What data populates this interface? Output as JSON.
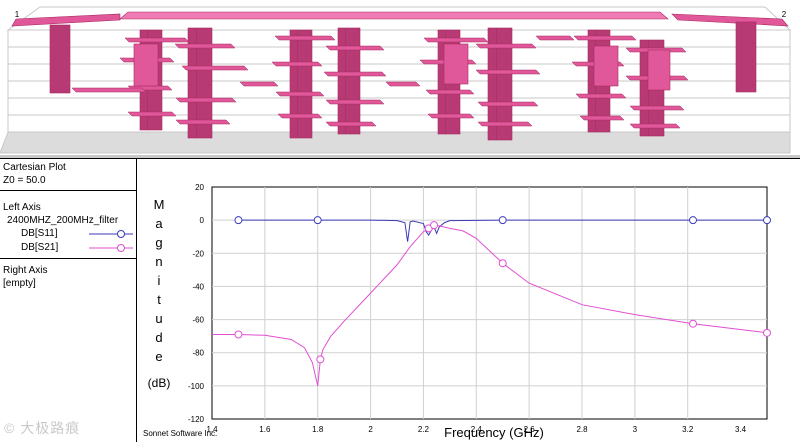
{
  "view3d": {
    "port_labels": [
      "1",
      "2"
    ],
    "colors": {
      "metal": "#e0579a",
      "metal_dark": "#a8285f",
      "metal_top": "#f07ab4",
      "via": "#b83a75",
      "grid": "#c8c8c8"
    }
  },
  "panel": {
    "plot_type": "Cartesian Plot",
    "z0": "Z0 = 50.0",
    "left_axis_title": "Left Axis",
    "project_name": "2400MHZ_200MHz_filter",
    "traces": [
      {
        "label": "DB[S11]",
        "color": "#3a3ab8"
      },
      {
        "label": "DB[S21]",
        "color": "#e04fd2"
      }
    ],
    "right_axis_title": "Right Axis",
    "right_axis_value": "[empty]"
  },
  "watermark": "© 大极路痕",
  "chart_data": {
    "type": "line",
    "xlabel": "Frequency (GHz)",
    "ylabel_letters": [
      "M",
      "a",
      "g",
      "n",
      "i",
      "t",
      "u",
      "d",
      "e"
    ],
    "ylabel_unit": "(dB)",
    "credit": "Sonnet Software Inc.",
    "xlim": [
      1.4,
      3.5
    ],
    "ylim": [
      -120,
      20
    ],
    "x_ticks": [
      "1.4",
      "1.6",
      "1.8",
      "2",
      "2.2",
      "2.4",
      "2.6",
      "2.8",
      "3",
      "3.2",
      "3.4"
    ],
    "y_ticks": [
      "20",
      "0",
      "-20",
      "-40",
      "-60",
      "-80",
      "-100",
      "-120"
    ],
    "grid": true,
    "series": [
      {
        "name": "DB[S11]",
        "color": "#3a3ab8",
        "x": [
          1.5,
          1.8,
          2.0,
          2.1,
          2.13,
          2.14,
          2.15,
          2.16,
          2.2,
          2.21,
          2.22,
          2.23,
          2.24,
          2.25,
          2.26,
          2.28,
          2.3,
          2.5,
          3.0,
          3.22,
          3.5
        ],
        "y": [
          0,
          0,
          0,
          -0.3,
          -1.5,
          -13,
          -1,
          -0.5,
          -2,
          -7,
          -9,
          -6,
          -4,
          -8,
          -4,
          -1.5,
          -0.3,
          0,
          0,
          0,
          0
        ],
        "markers_x": [
          1.5,
          1.8,
          2.5,
          3.22,
          3.5
        ],
        "markers_y": [
          0,
          0,
          0,
          0,
          0
        ]
      },
      {
        "name": "DB[S21]",
        "color": "#e04fd2",
        "x": [
          1.4,
          1.5,
          1.6,
          1.7,
          1.75,
          1.78,
          1.8,
          1.81,
          1.82,
          1.85,
          1.9,
          2.0,
          2.1,
          2.15,
          2.2,
          2.22,
          2.24,
          2.26,
          2.3,
          2.35,
          2.4,
          2.5,
          2.6,
          2.8,
          3.0,
          3.22,
          3.5
        ],
        "y": [
          -69,
          -69,
          -69.5,
          -72,
          -77,
          -86,
          -100,
          -84,
          -78,
          -70,
          -61,
          -44,
          -27,
          -16,
          -7,
          -5,
          -3,
          -3.5,
          -5,
          -6.5,
          -11,
          -26,
          -38,
          -51,
          -57,
          -62.5,
          -68
        ],
        "markers_x": [
          1.5,
          1.81,
          2.22,
          2.24,
          2.5,
          3.22,
          3.5
        ],
        "markers_y": [
          -69,
          -84,
          -5,
          -3,
          -26,
          -62.5,
          -68
        ]
      }
    ]
  }
}
